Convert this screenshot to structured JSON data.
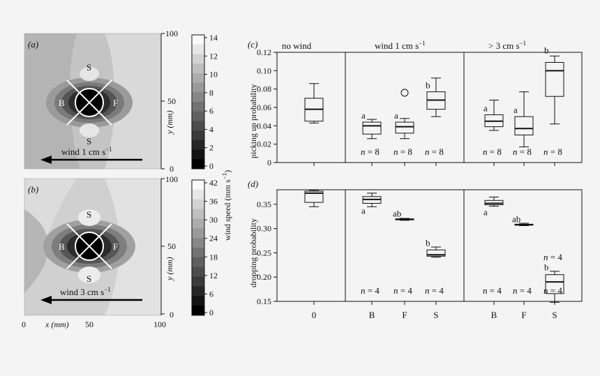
{
  "panels": {
    "a": {
      "label": "(a)",
      "wind_label": "wind 1 cm s",
      "wind_exp": "−1",
      "y_title": "y (mm)",
      "y_ticks": [
        "100",
        "50",
        "0"
      ],
      "colorbar_ticks": [
        "14",
        "12",
        "10",
        "8",
        "6",
        "4",
        "2",
        "0"
      ],
      "colorbar_levels": 14,
      "markers": {
        "top": "S",
        "bottom": "S",
        "left": "B",
        "right": "F"
      }
    },
    "b": {
      "label": "(b)",
      "wind_label": "wind 3 cm s",
      "wind_exp": "−1",
      "y_title": "y (mm)",
      "y_ticks": [
        "100",
        "50",
        "0"
      ],
      "x_title": "x (mm)",
      "x_ticks": [
        "0",
        "50",
        "100"
      ],
      "colorbar_ticks": [
        "42",
        "36",
        "30",
        "24",
        "18",
        "12",
        "6",
        "0"
      ],
      "colorbar_levels": 14,
      "markers": {
        "top": "S",
        "bottom": "S",
        "left": "B",
        "right": "F"
      }
    },
    "colorbar_title": "wind speed (mm s",
    "colorbar_title_exp": "−1",
    "colorbar_title_end": ")"
  },
  "chart_data": [
    {
      "type": "box",
      "panel": "(c)",
      "ylabel": "picking up probability",
      "ylim": [
        0,
        0.12
      ],
      "yticks": [
        "0",
        "0.02",
        "0.04",
        "0.06",
        "0.08",
        "0.10",
        "0.12"
      ],
      "groups": [
        {
          "header": "no wind",
          "header_exp": ""
        },
        {
          "header": "wind 1 cm s",
          "header_exp": "−1"
        },
        {
          "header": "> 3 cm s",
          "header_exp": "−1"
        }
      ],
      "boxes": [
        {
          "group": 0,
          "category": "0",
          "min": 0.043,
          "q1": 0.045,
          "median": 0.058,
          "q3": 0.07,
          "max": 0.086,
          "letter": "",
          "n": "",
          "outliers": []
        },
        {
          "group": 1,
          "category": "B",
          "min": 0.026,
          "q1": 0.031,
          "median": 0.04,
          "q3": 0.044,
          "max": 0.047,
          "letter": "a",
          "n": "n = 8",
          "outliers": []
        },
        {
          "group": 1,
          "category": "F",
          "min": 0.026,
          "q1": 0.032,
          "median": 0.039,
          "q3": 0.044,
          "max": 0.048,
          "letter": "a",
          "n": "n = 8",
          "outliers": [
            0.076
          ]
        },
        {
          "group": 1,
          "category": "S",
          "min": 0.05,
          "q1": 0.058,
          "median": 0.068,
          "q3": 0.077,
          "max": 0.092,
          "letter": "b",
          "n": "n = 8",
          "outliers": []
        },
        {
          "group": 2,
          "category": "B",
          "min": 0.035,
          "q1": 0.039,
          "median": 0.045,
          "q3": 0.052,
          "max": 0.068,
          "letter": "a",
          "n": "n = 8",
          "outliers": []
        },
        {
          "group": 2,
          "category": "F",
          "min": 0.017,
          "q1": 0.03,
          "median": 0.037,
          "q3": 0.05,
          "max": 0.077,
          "letter": "a",
          "n": "n = 8",
          "outliers": []
        },
        {
          "group": 2,
          "category": "S",
          "min": 0.042,
          "q1": 0.072,
          "median": 0.1,
          "q3": 0.109,
          "max": 0.116,
          "letter": "b",
          "n": "n = 8",
          "outliers": []
        }
      ]
    },
    {
      "type": "box",
      "panel": "(d)",
      "ylabel": "dropping probability",
      "xlabels": [
        "0",
        "B",
        "F",
        "S",
        "B",
        "F",
        "S"
      ],
      "ylim": [
        0.15,
        0.38
      ],
      "yticks": [
        "0.15",
        "0.20",
        "0.25",
        "0.30",
        "0.35"
      ],
      "boxes": [
        {
          "group": 0,
          "category": "0",
          "min": 0.345,
          "q1": 0.354,
          "median": 0.373,
          "q3": 0.377,
          "max": 0.379,
          "letter": "",
          "n": ""
        },
        {
          "group": 1,
          "category": "B",
          "min": 0.345,
          "q1": 0.352,
          "median": 0.36,
          "q3": 0.366,
          "max": 0.373,
          "letter": "a",
          "n": "n = 4"
        },
        {
          "group": 1,
          "category": "F",
          "min": 0.317,
          "q1": 0.318,
          "median": 0.319,
          "q3": 0.32,
          "max": 0.321,
          "letter": "ab",
          "n": "n = 4"
        },
        {
          "group": 1,
          "category": "S",
          "min": 0.241,
          "q1": 0.243,
          "median": 0.246,
          "q3": 0.256,
          "max": 0.262,
          "letter": "b",
          "n": "n = 4"
        },
        {
          "group": 2,
          "category": "B",
          "min": 0.346,
          "q1": 0.349,
          "median": 0.352,
          "q3": 0.358,
          "max": 0.365,
          "letter": "a",
          "n": "n = 4"
        },
        {
          "group": 2,
          "category": "F",
          "min": 0.306,
          "q1": 0.307,
          "median": 0.308,
          "q3": 0.309,
          "max": 0.311,
          "letter": "ab",
          "n": "n = 4"
        },
        {
          "group": 2,
          "category": "S",
          "min": 0.148,
          "q1": 0.166,
          "median": 0.19,
          "q3": 0.205,
          "max": 0.212,
          "letter": "b",
          "n": "n = 4"
        }
      ],
      "extra_n": "n = 4"
    }
  ]
}
